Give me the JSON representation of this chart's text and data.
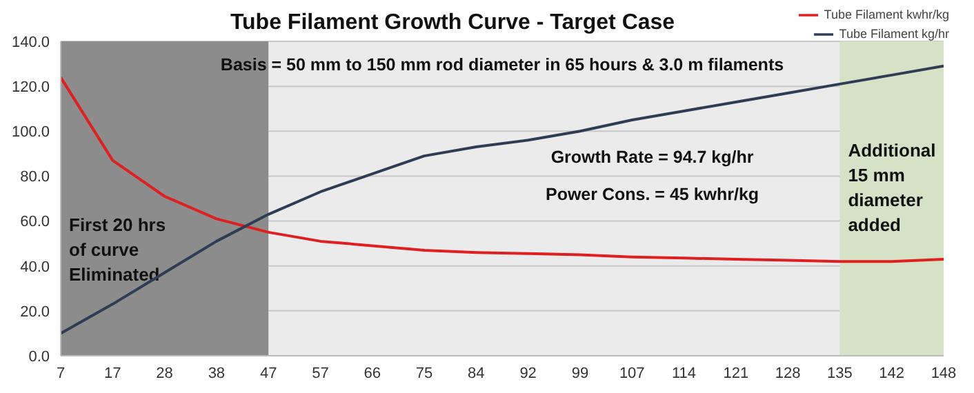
{
  "chart_data": {
    "type": "line",
    "title": "Tube Filament Growth Curve - Target Case",
    "categories": [
      "7",
      "17",
      "28",
      "38",
      "47",
      "57",
      "66",
      "75",
      "84",
      "92",
      "99",
      "107",
      "114",
      "121",
      "128",
      "135",
      "142",
      "148"
    ],
    "series": [
      {
        "name": "Tube Filament kwhr/kg",
        "color": "#e02020",
        "values": [
          124,
          87,
          71,
          61,
          55,
          51,
          49,
          47,
          46,
          45.5,
          45,
          44,
          43.5,
          43,
          42.5,
          42,
          42,
          43
        ]
      },
      {
        "name": "Tube Filament kg/hr",
        "color": "#2e3d55",
        "values": [
          10,
          23,
          37,
          51,
          63,
          73,
          81,
          89,
          93,
          96,
          100,
          105,
          109,
          113,
          117,
          121,
          125,
          129
        ]
      }
    ],
    "ylim": [
      0,
      140
    ],
    "yticks": [
      {
        "value": 0,
        "label": "0.0"
      },
      {
        "value": 20,
        "label": "20.0"
      },
      {
        "value": 40,
        "label": "40.0"
      },
      {
        "value": 60,
        "label": "60.0"
      },
      {
        "value": 80,
        "label": "80.0"
      },
      {
        "value": 100,
        "label": "100.0"
      },
      {
        "value": 120,
        "label": "120.0"
      },
      {
        "value": 140,
        "label": "140.0"
      }
    ],
    "bands": [
      {
        "axis": "x",
        "from": "7",
        "to": "47",
        "label": "First 20 hrs of curve Eliminated",
        "color": "#8c8c8c"
      },
      {
        "axis": "x",
        "from": "135",
        "to": "148",
        "label": "Additional 15 mm diameter added",
        "color": "#d5e2c5"
      }
    ],
    "annotations": [
      "Basis = 50 mm to 150 mm rod diameter in 65 hours & 3.0 m filaments",
      "Growth Rate = 94.7 kg/hr",
      "Power Cons. =  45 kwhr/kg"
    ],
    "grid": "y",
    "legend": "top right",
    "marker": "none",
    "line_style": "solid"
  }
}
